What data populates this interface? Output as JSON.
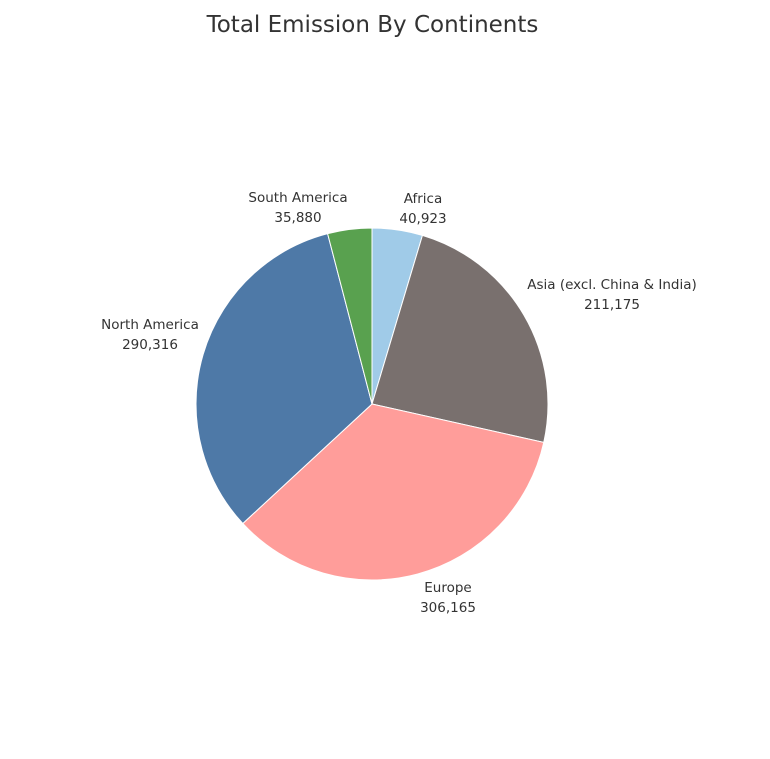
{
  "chart_data": {
    "type": "pie",
    "title": "Total Emission By Continents",
    "slices": [
      {
        "label": "Africa",
        "value": 40923,
        "value_text": "40,923",
        "color": "#a0cbe8"
      },
      {
        "label": "Asia (excl. China & India)",
        "value": 211175,
        "value_text": "211,175",
        "color": "#79706e"
      },
      {
        "label": "Europe",
        "value": 306165,
        "value_text": "306,165",
        "color": "#ff9d9a"
      },
      {
        "label": "North America",
        "value": 290316,
        "value_text": "290,316",
        "color": "#4e79a7"
      },
      {
        "label": "South America",
        "value": 35880,
        "value_text": "35,880",
        "color": "#59a14f"
      }
    ],
    "start_angle": "12 o'clock",
    "direction": "clockwise",
    "legend": "none"
  }
}
